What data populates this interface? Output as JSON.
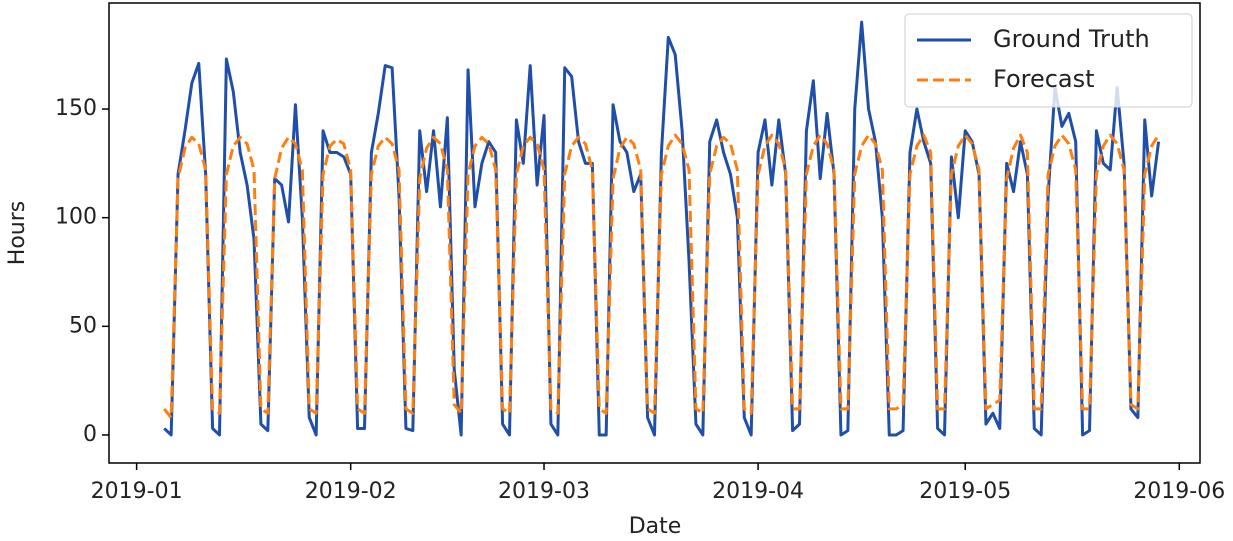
{
  "chart_data": {
    "type": "line",
    "xlabel": "Date",
    "ylabel": "Hours",
    "x": [
      "2019-01-05",
      "2019-01-06",
      "2019-01-07",
      "2019-01-08",
      "2019-01-09",
      "2019-01-10",
      "2019-01-11",
      "2019-01-12",
      "2019-01-13",
      "2019-01-14",
      "2019-01-15",
      "2019-01-16",
      "2019-01-17",
      "2019-01-18",
      "2019-01-19",
      "2019-01-20",
      "2019-01-21",
      "2019-01-22",
      "2019-01-23",
      "2019-01-24",
      "2019-01-25",
      "2019-01-26",
      "2019-01-27",
      "2019-01-28",
      "2019-01-29",
      "2019-01-30",
      "2019-01-31",
      "2019-02-01",
      "2019-02-02",
      "2019-02-03",
      "2019-02-04",
      "2019-02-05",
      "2019-02-06",
      "2019-02-07",
      "2019-02-08",
      "2019-02-09",
      "2019-02-10",
      "2019-02-11",
      "2019-02-12",
      "2019-02-13",
      "2019-02-14",
      "2019-02-15",
      "2019-02-16",
      "2019-02-17",
      "2019-02-18",
      "2019-02-19",
      "2019-02-20",
      "2019-02-21",
      "2019-02-22",
      "2019-02-23",
      "2019-02-24",
      "2019-02-25",
      "2019-02-26",
      "2019-02-27",
      "2019-02-28",
      "2019-03-01",
      "2019-03-02",
      "2019-03-03",
      "2019-03-04",
      "2019-03-05",
      "2019-03-06",
      "2019-03-07",
      "2019-03-08",
      "2019-03-09",
      "2019-03-10",
      "2019-03-11",
      "2019-03-12",
      "2019-03-13",
      "2019-03-14",
      "2019-03-15",
      "2019-03-16",
      "2019-03-17",
      "2019-03-18",
      "2019-03-19",
      "2019-03-20",
      "2019-03-21",
      "2019-03-22",
      "2019-03-23",
      "2019-03-24",
      "2019-03-25",
      "2019-03-26",
      "2019-03-27",
      "2019-03-28",
      "2019-03-29",
      "2019-03-30",
      "2019-03-31",
      "2019-04-01",
      "2019-04-02",
      "2019-04-03",
      "2019-04-04",
      "2019-04-05",
      "2019-04-06",
      "2019-04-07",
      "2019-04-08",
      "2019-04-09",
      "2019-04-10",
      "2019-04-11",
      "2019-04-12",
      "2019-04-13",
      "2019-04-14",
      "2019-04-15",
      "2019-04-16",
      "2019-04-17",
      "2019-04-18",
      "2019-04-19",
      "2019-04-20",
      "2019-04-21",
      "2019-04-22",
      "2019-04-23",
      "2019-04-24",
      "2019-04-25",
      "2019-04-26",
      "2019-04-27",
      "2019-04-28",
      "2019-04-29",
      "2019-04-30",
      "2019-05-01",
      "2019-05-02",
      "2019-05-03",
      "2019-05-04",
      "2019-05-05",
      "2019-05-06",
      "2019-05-07",
      "2019-05-08",
      "2019-05-09",
      "2019-05-10",
      "2019-05-11",
      "2019-05-12",
      "2019-05-13",
      "2019-05-14",
      "2019-05-15",
      "2019-05-16",
      "2019-05-17",
      "2019-05-18",
      "2019-05-19",
      "2019-05-20",
      "2019-05-21",
      "2019-05-22",
      "2019-05-23",
      "2019-05-24",
      "2019-05-25",
      "2019-05-26",
      "2019-05-27",
      "2019-05-28",
      "2019-05-29"
    ],
    "series": [
      {
        "name": "Ground Truth",
        "color": "#1f4fa8",
        "linestyle": "solid",
        "values": [
          3,
          0,
          120,
          140,
          162,
          171,
          120,
          3,
          0,
          173,
          158,
          130,
          115,
          90,
          5,
          2,
          118,
          115,
          98,
          152,
          100,
          8,
          0,
          140,
          130,
          130,
          128,
          120,
          3,
          3,
          130,
          148,
          170,
          169,
          110,
          3,
          2,
          140,
          112,
          140,
          105,
          146,
          30,
          0,
          168,
          105,
          125,
          135,
          130,
          5,
          0,
          145,
          125,
          170,
          115,
          147,
          5,
          0,
          169,
          165,
          135,
          125,
          125,
          0,
          0,
          152,
          135,
          130,
          112,
          120,
          8,
          0,
          130,
          183,
          175,
          140,
          80,
          5,
          0,
          135,
          145,
          130,
          120,
          100,
          8,
          0,
          130,
          145,
          115,
          145,
          120,
          2,
          5,
          140,
          163,
          118,
          148,
          120,
          0,
          2,
          150,
          190,
          150,
          135,
          100,
          0,
          0,
          2,
          130,
          150,
          135,
          125,
          3,
          0,
          128,
          100,
          140,
          135,
          120,
          5,
          10,
          3,
          125,
          112,
          135,
          120,
          3,
          0,
          110,
          160,
          142,
          148,
          135,
          0,
          2,
          140,
          125,
          122,
          160,
          125,
          12,
          8,
          145,
          110,
          135
        ]
      },
      {
        "name": "Forecast",
        "color": "#ff7f0e",
        "linestyle": "dashed",
        "values": [
          12,
          8,
          118,
          132,
          137,
          134,
          122,
          12,
          10,
          120,
          133,
          137,
          134,
          122,
          12,
          10,
          118,
          132,
          137,
          134,
          122,
          12,
          10,
          120,
          133,
          136,
          134,
          122,
          12,
          10,
          120,
          133,
          137,
          134,
          122,
          12,
          10,
          118,
          132,
          137,
          134,
          122,
          14,
          10,
          120,
          133,
          137,
          134,
          122,
          12,
          10,
          120,
          133,
          137,
          134,
          122,
          12,
          10,
          120,
          133,
          137,
          134,
          122,
          12,
          10,
          118,
          132,
          137,
          134,
          122,
          12,
          10,
          120,
          133,
          138,
          134,
          122,
          12,
          10,
          120,
          133,
          137,
          134,
          122,
          12,
          10,
          120,
          133,
          138,
          134,
          122,
          12,
          12,
          120,
          133,
          138,
          134,
          122,
          12,
          12,
          120,
          133,
          138,
          134,
          122,
          12,
          12,
          14,
          120,
          133,
          138,
          130,
          12,
          12,
          120,
          133,
          138,
          134,
          122,
          12,
          14,
          16,
          118,
          132,
          138,
          130,
          12,
          12,
          120,
          133,
          138,
          134,
          122,
          12,
          12,
          120,
          133,
          138,
          134,
          122,
          14,
          12,
          120,
          133,
          138
        ]
      }
    ],
    "xlim": [
      "2018-12-28",
      "2019-06-04"
    ],
    "xticks": [
      {
        "value": "2019-01-01",
        "label": "2019-01"
      },
      {
        "value": "2019-02-01",
        "label": "2019-02"
      },
      {
        "value": "2019-03-01",
        "label": "2019-03"
      },
      {
        "value": "2019-04-01",
        "label": "2019-04"
      },
      {
        "value": "2019-05-01",
        "label": "2019-05"
      },
      {
        "value": "2019-06-01",
        "label": "2019-06"
      }
    ],
    "ylim": [
      -12.9,
      198.8
    ],
    "yticks": [
      0,
      50,
      100,
      150
    ],
    "grid": false,
    "legend": "upper right"
  }
}
